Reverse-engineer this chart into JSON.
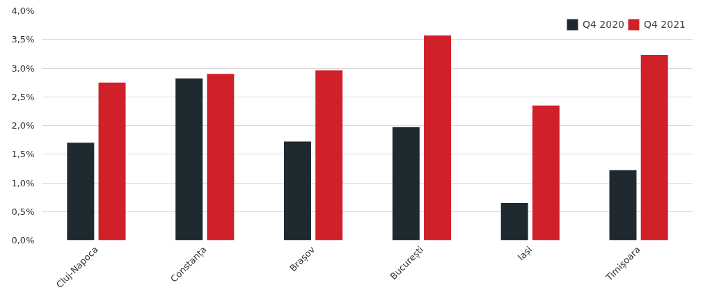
{
  "chart_data": {
    "type": "bar",
    "categories": [
      "Cluj-Napoca",
      "Constanța",
      "Brașov",
      "București",
      "Iași",
      "Timișoara"
    ],
    "series": [
      {
        "name": "Q4 2020",
        "color": "#1f2a30",
        "values": [
          1.7,
          2.82,
          1.72,
          1.97,
          0.65,
          1.22
        ]
      },
      {
        "name": "Q4 2021",
        "color": "#d0202a",
        "values": [
          2.75,
          2.9,
          2.96,
          3.57,
          2.35,
          3.23
        ]
      }
    ],
    "ylim": [
      0,
      4
    ],
    "yticks": [
      {
        "value": 0,
        "label": "0,0%"
      },
      {
        "value": 0.5,
        "label": "0,5%"
      },
      {
        "value": 1,
        "label": "1,0%"
      },
      {
        "value": 1.5,
        "label": "1,5%"
      },
      {
        "value": 2,
        "label": "2,0%"
      },
      {
        "value": 2.5,
        "label": "2,5%"
      },
      {
        "value": 3,
        "label": "3,0%"
      },
      {
        "value": 3.5,
        "label": "3,5%"
      },
      {
        "value": 4,
        "label": "4,0%"
      }
    ],
    "grid": "y",
    "legend": "top right"
  }
}
